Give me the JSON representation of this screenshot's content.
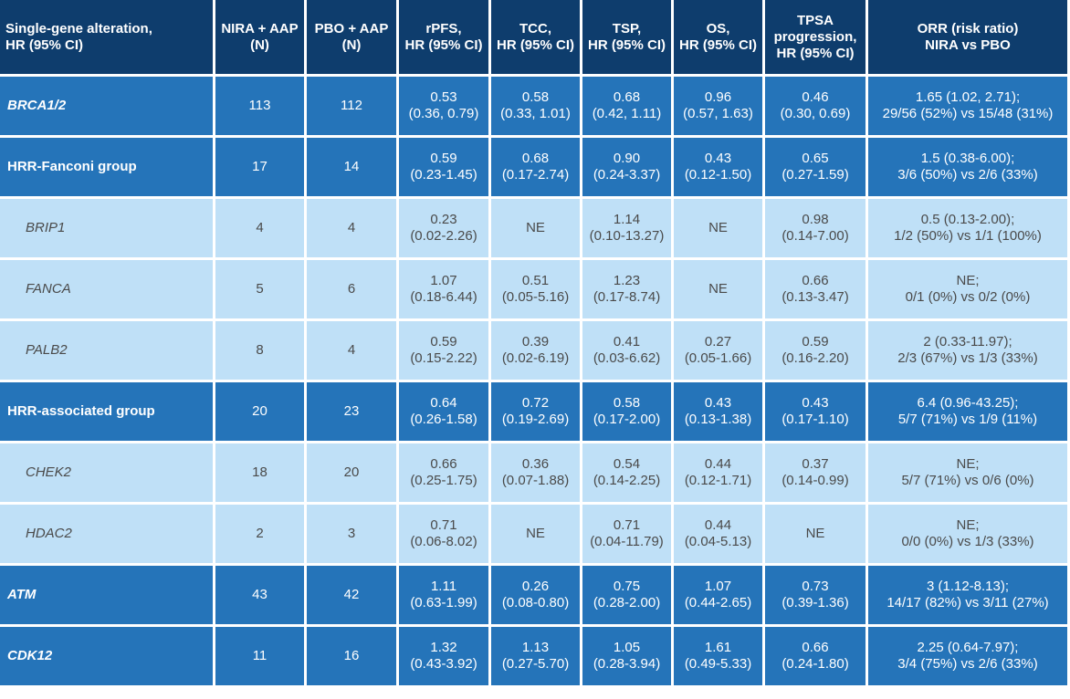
{
  "headers": [
    [
      "Single-gene alteration,",
      "HR (95% CI)"
    ],
    [
      "NIRA + AAP",
      "(N)"
    ],
    [
      "PBO + AAP",
      "(N)"
    ],
    [
      "rPFS,",
      "HR (95% CI)"
    ],
    [
      "TCC,",
      "HR (95% CI)"
    ],
    [
      "TSP,",
      "HR (95% CI)"
    ],
    [
      "OS,",
      "HR (95% CI)"
    ],
    [
      "TPSA",
      "progression,",
      "HR (95% CI)"
    ],
    [
      "ORR (risk ratio)",
      "NIRA vs PBO"
    ]
  ],
  "rows": [
    {
      "type": "main",
      "italic": true,
      "name": "BRCA1/2",
      "nira": "113",
      "pbo": "112",
      "rpfs": [
        "0.53",
        "(0.36, 0.79)"
      ],
      "tcc": [
        "0.58",
        "(0.33, 1.01)"
      ],
      "tsp": [
        "0.68",
        "(0.42, 1.11)"
      ],
      "os": [
        "0.96",
        "(0.57, 1.63)"
      ],
      "tpsa": [
        "0.46",
        "(0.30, 0.69)"
      ],
      "orr": [
        "1.65 (1.02, 2.71);",
        "29/56 (52%) vs 15/48 (31%)"
      ]
    },
    {
      "type": "main",
      "italic": false,
      "name": "HRR-Fanconi group",
      "nira": "17",
      "pbo": "14",
      "rpfs": [
        "0.59",
        "(0.23-1.45)"
      ],
      "tcc": [
        "0.68",
        "(0.17-2.74)"
      ],
      "tsp": [
        "0.90",
        "(0.24-3.37)"
      ],
      "os": [
        "0.43",
        "(0.12-1.50)"
      ],
      "tpsa": [
        "0.65",
        "(0.27-1.59)"
      ],
      "orr": [
        "1.5 (0.38-6.00);",
        "3/6 (50%) vs 2/6 (33%)"
      ]
    },
    {
      "type": "sub",
      "italic": true,
      "name": "BRIP1",
      "nira": "4",
      "pbo": "4",
      "rpfs": [
        "0.23",
        "(0.02-2.26)"
      ],
      "tcc": [
        "NE"
      ],
      "tsp": [
        "1.14",
        "(0.10-13.27)"
      ],
      "os": [
        "NE"
      ],
      "tpsa": [
        "0.98",
        "(0.14-7.00)"
      ],
      "orr": [
        "0.5 (0.13-2.00);",
        "1/2 (50%) vs 1/1 (100%)"
      ]
    },
    {
      "type": "sub",
      "italic": true,
      "name": "FANCA",
      "nira": "5",
      "pbo": "6",
      "rpfs": [
        "1.07",
        "(0.18-6.44)"
      ],
      "tcc": [
        "0.51",
        "(0.05-5.16)"
      ],
      "tsp": [
        "1.23",
        "(0.17-8.74)"
      ],
      "os": [
        "NE"
      ],
      "tpsa": [
        "0.66",
        "(0.13-3.47)"
      ],
      "orr": [
        "NE;",
        "0/1 (0%) vs 0/2 (0%)"
      ]
    },
    {
      "type": "sub",
      "italic": true,
      "name": "PALB2",
      "nira": "8",
      "pbo": "4",
      "rpfs": [
        "0.59",
        "(0.15-2.22)"
      ],
      "tcc": [
        "0.39",
        "(0.02-6.19)"
      ],
      "tsp": [
        "0.41",
        "(0.03-6.62)"
      ],
      "os": [
        "0.27",
        "(0.05-1.66)"
      ],
      "tpsa": [
        "0.59",
        "(0.16-2.20)"
      ],
      "orr": [
        "2 (0.33-11.97);",
        "2/3 (67%) vs 1/3 (33%)"
      ]
    },
    {
      "type": "main",
      "italic": false,
      "name": "HRR-associated group",
      "nira": "20",
      "pbo": "23",
      "rpfs": [
        "0.64",
        "(0.26-1.58)"
      ],
      "tcc": [
        "0.72",
        "(0.19-2.69)"
      ],
      "tsp": [
        "0.58",
        "(0.17-2.00)"
      ],
      "os": [
        "0.43",
        "(0.13-1.38)"
      ],
      "tpsa": [
        "0.43",
        "(0.17-1.10)"
      ],
      "orr": [
        "6.4 (0.96-43.25);",
        "5/7 (71%) vs 1/9 (11%)"
      ]
    },
    {
      "type": "sub",
      "italic": true,
      "name": "CHEK2",
      "nira": "18",
      "pbo": "20",
      "rpfs": [
        "0.66",
        "(0.25-1.75)"
      ],
      "tcc": [
        "0.36",
        "(0.07-1.88)"
      ],
      "tsp": [
        "0.54",
        "(0.14-2.25)"
      ],
      "os": [
        "0.44",
        "(0.12-1.71)"
      ],
      "tpsa": [
        "0.37",
        "(0.14-0.99)"
      ],
      "orr": [
        "NE;",
        "5/7 (71%) vs 0/6 (0%)"
      ]
    },
    {
      "type": "sub",
      "italic": true,
      "name": "HDAC2",
      "nira": "2",
      "pbo": "3",
      "rpfs": [
        "0.71",
        "(0.06-8.02)"
      ],
      "tcc": [
        "NE"
      ],
      "tsp": [
        "0.71",
        "(0.04-11.79)"
      ],
      "os": [
        "0.44",
        "(0.04-5.13)"
      ],
      "tpsa": [
        "NE"
      ],
      "orr": [
        "NE;",
        "0/0 (0%) vs 1/3 (33%)"
      ]
    },
    {
      "type": "main",
      "italic": true,
      "name": "ATM",
      "nira": "43",
      "pbo": "42",
      "rpfs": [
        "1.11",
        "(0.63-1.99)"
      ],
      "tcc": [
        "0.26",
        "(0.08-0.80)"
      ],
      "tsp": [
        "0.75",
        "(0.28-2.00)"
      ],
      "os": [
        "1.07",
        "(0.44-2.65)"
      ],
      "tpsa": [
        "0.73",
        "(0.39-1.36)"
      ],
      "orr": [
        "3 (1.12-8.13);",
        "14/17 (82%) vs 3/11 (27%)"
      ]
    },
    {
      "type": "main",
      "italic": true,
      "name": "CDK12",
      "nira": "11",
      "pbo": "16",
      "rpfs": [
        "1.32",
        "(0.43-3.92)"
      ],
      "tcc": [
        "1.13",
        "(0.27-5.70)"
      ],
      "tsp": [
        "1.05",
        "(0.28-3.94)"
      ],
      "os": [
        "1.61",
        "(0.49-5.33)"
      ],
      "tpsa": [
        "0.66",
        "(0.24-1.80)"
      ],
      "orr": [
        "2.25 (0.64-7.97);",
        "3/4 (75%) vs 2/6 (33%)"
      ]
    }
  ],
  "colors": {
    "header": "#0e3d6d",
    "main_row": "#2574b9",
    "sub_row": "#bfe0f7"
  }
}
